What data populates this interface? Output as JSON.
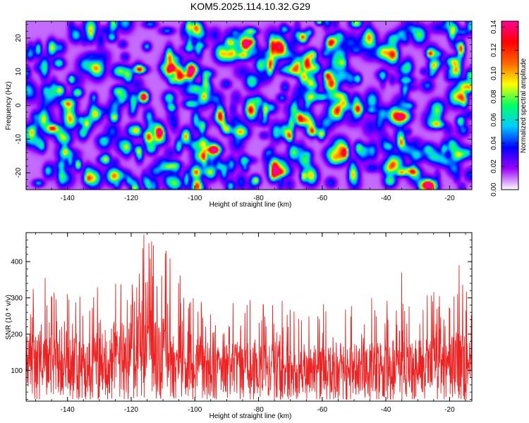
{
  "title": "KOM5.2025.114.10.32.G29",
  "chart_data": [
    {
      "type": "heatmap",
      "xlabel": "Height of straight line (km)",
      "ylabel": "Frequency (Hz)",
      "xlim": [
        -153,
        -13
      ],
      "ylim": [
        -25,
        25
      ],
      "xticks": [
        -140,
        -120,
        -100,
        -80,
        -60,
        -40,
        -20
      ],
      "yticks": [
        -20,
        -10,
        0,
        10,
        20
      ],
      "colorbar": {
        "label": "Normalized spectral amplitude",
        "range": [
          0,
          0.145
        ],
        "ticks": [
          0.0,
          0.02,
          0.04,
          0.06,
          0.08,
          0.1,
          0.12,
          0.14
        ],
        "colormap": [
          "#ffffff",
          "#9900ff",
          "#0000ff",
          "#00ccff",
          "#00ff66",
          "#ffff00",
          "#ff6600",
          "#ff0000",
          "#ff0099"
        ]
      },
      "description_values": {
        "background_amplitude": 0.03,
        "hotspots": [
          {
            "x": -116,
            "y": 2.5,
            "value": 0.13
          },
          {
            "x": -111,
            "y": -8,
            "value": 0.12
          },
          {
            "x": -107,
            "y": 11,
            "value": 0.1
          },
          {
            "x": -84,
            "y": 18,
            "value": 0.09
          },
          {
            "x": -66,
            "y": 20,
            "value": 0.09
          },
          {
            "x": -128,
            "y": -16,
            "value": 0.08
          },
          {
            "x": -90,
            "y": -7,
            "value": 0.08
          },
          {
            "x": -63,
            "y": 15,
            "value": 0.08
          }
        ]
      }
    },
    {
      "type": "line",
      "xlabel": "Height of straight line (km)",
      "ylabel": "SNR (10 * v/v)",
      "xlim": [
        -153,
        -13
      ],
      "ylim": [
        15,
        480
      ],
      "xticks": [
        -140,
        -120,
        -100,
        -80,
        -60,
        -40,
        -20
      ],
      "yticks": [
        100,
        200,
        300,
        400
      ],
      "series": [
        {
          "color": "#ee2222",
          "samples": 1500,
          "envelope": {
            "x": [
              -153,
              -140,
              -130,
              -120,
              -116,
              -110,
              -104,
              -100,
              -90,
              -80,
              -70,
              -60,
              -50,
              -40,
              -30,
              -20,
              -13
            ],
            "baseline": [
              110,
              105,
              110,
              135,
              150,
              140,
              120,
              105,
              95,
              95,
              90,
              95,
              95,
              95,
              100,
              110,
              110
            ],
            "peak": [
              330,
              320,
              330,
              380,
              470,
              440,
              360,
              300,
              290,
              300,
              290,
              300,
              300,
              300,
              320,
              350,
              360
            ]
          },
          "noted_peaks": [
            {
              "x": -116,
              "y": 475
            },
            {
              "x": -113,
              "y": 445
            },
            {
              "x": -109,
              "y": 430
            },
            {
              "x": -147,
              "y": 355
            },
            {
              "x": -35,
              "y": 370
            },
            {
              "x": -17,
              "y": 390
            }
          ]
        }
      ]
    }
  ]
}
